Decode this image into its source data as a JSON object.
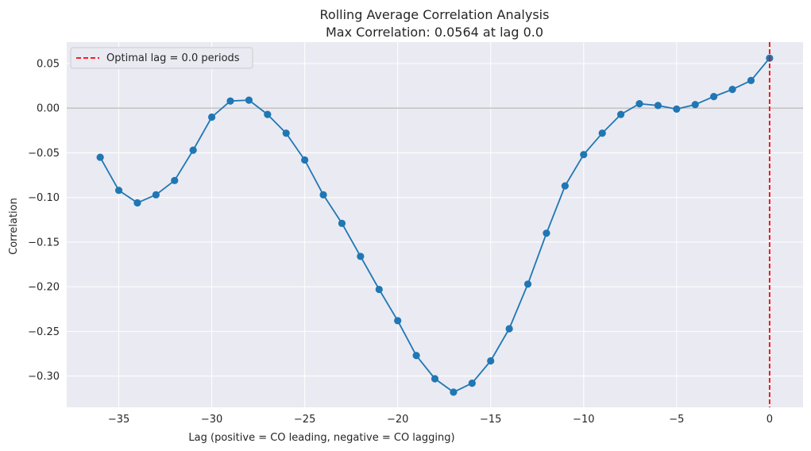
{
  "chart_data": {
    "type": "line",
    "title": "Rolling Average Correlation Analysis",
    "subtitle": "Max Correlation: 0.0564 at lag 0.0",
    "xlabel": "Lag (positive = CO leading, negative = CO lagging)",
    "ylabel": "Correlation",
    "xlim": [
      -37.8,
      1.8
    ],
    "ylim": [
      -0.335,
      0.074
    ],
    "xticks": [
      -35,
      -30,
      -25,
      -20,
      -15,
      -10,
      -5,
      0
    ],
    "xtick_labels": [
      "−35",
      "−30",
      "−25",
      "−20",
      "−15",
      "−10",
      "−5",
      "0"
    ],
    "yticks": [
      0.05,
      0.0,
      -0.05,
      -0.1,
      -0.15,
      -0.2,
      -0.25,
      -0.3
    ],
    "ytick_labels": [
      "0.05",
      "0.00",
      "−0.05",
      "−0.10",
      "−0.15",
      "−0.20",
      "−0.25",
      "−0.30"
    ],
    "grid": true,
    "legend_position": "top-left",
    "legend_entries": [
      "Optimal lag = 0.0 periods"
    ],
    "reference_lines": {
      "horizontal_y": 0.0,
      "vertical_x": 0.0
    },
    "series": [
      {
        "x": [
          -36,
          -35,
          -34,
          -33,
          -32,
          -31,
          -30,
          -29,
          -28,
          -27,
          -26,
          -25,
          -24,
          -23,
          -22,
          -21,
          -20,
          -19,
          -18,
          -17,
          -16,
          -15,
          -14,
          -13,
          -12,
          -11,
          -10,
          -9,
          -8,
          -7,
          -6,
          -5,
          -4,
          -3,
          -2,
          -1,
          0
        ],
        "values": [
          -0.055,
          -0.092,
          -0.106,
          -0.097,
          -0.081,
          -0.047,
          -0.01,
          0.008,
          0.009,
          -0.007,
          -0.028,
          -0.058,
          -0.097,
          -0.129,
          -0.166,
          -0.203,
          -0.238,
          -0.277,
          -0.303,
          -0.318,
          -0.308,
          -0.283,
          -0.247,
          -0.197,
          -0.14,
          -0.087,
          -0.052,
          -0.028,
          -0.007,
          0.005,
          0.003,
          -0.001,
          0.004,
          0.013,
          0.021,
          0.031,
          0.056
        ]
      }
    ],
    "colors": {
      "line": "#1f77b4",
      "optimal_line": "#ff0000",
      "plot_background": "#eaeaf2",
      "grid": "#ffffff",
      "zero_line": "#bdbdbd"
    }
  }
}
